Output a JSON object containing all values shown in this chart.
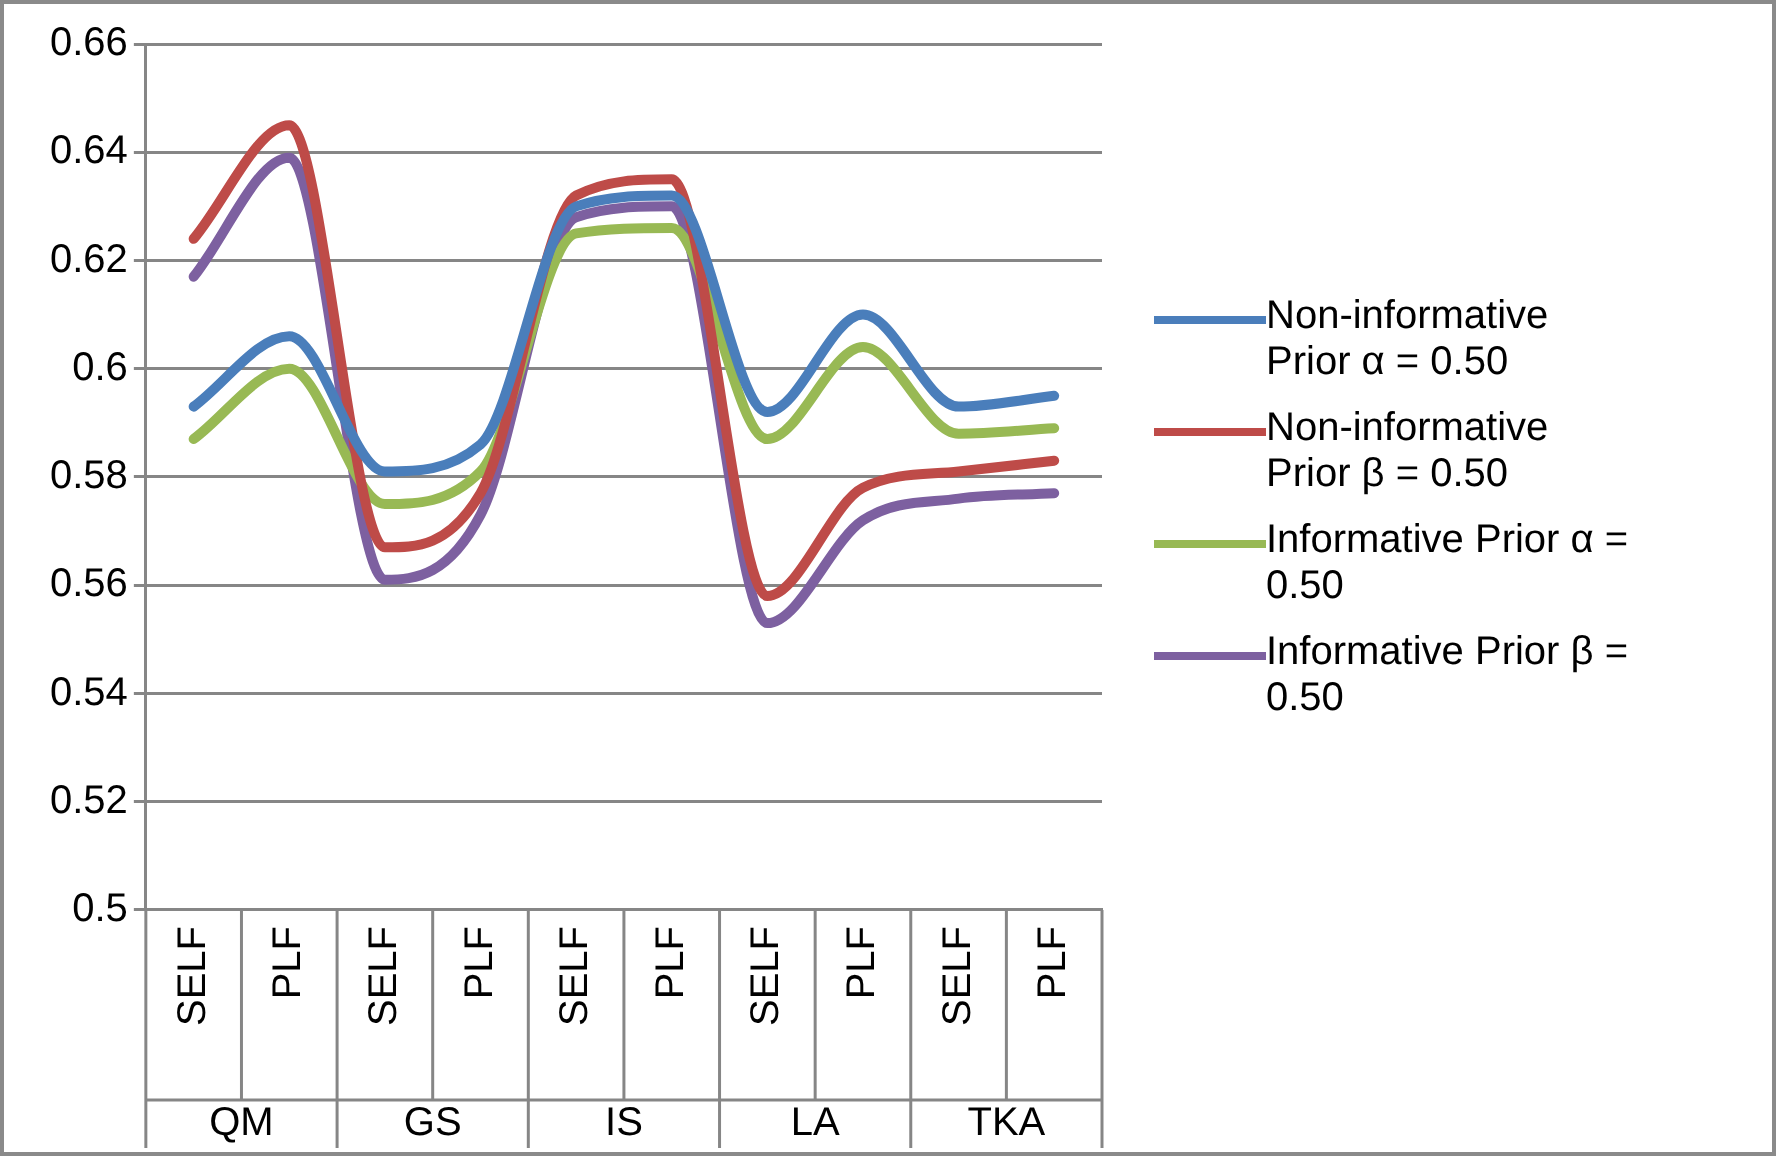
{
  "chart_data": {
    "type": "line",
    "categories": [
      "SELF",
      "PLF",
      "SELF",
      "PLF",
      "SELF",
      "PLF",
      "SELF",
      "PLF",
      "SELF",
      "PLF"
    ],
    "annotations": [
      "QM",
      "GS",
      "IS",
      "LA",
      "TKA"
    ],
    "ylim": [
      0.5,
      0.66
    ],
    "yticks": [
      0.5,
      0.52,
      0.54,
      0.56,
      0.58,
      0.6,
      0.62,
      0.64,
      0.66
    ],
    "grid": "y",
    "legend": "right",
    "marker": "none",
    "series": [
      {
        "name": "Non-informative Prior α = 0.50",
        "color": "#4a7ebb",
        "values": [
          0.593,
          0.606,
          0.581,
          0.586,
          0.63,
          0.632,
          0.592,
          0.61,
          0.593,
          0.595
        ]
      },
      {
        "name": "Non-informative Prior β = 0.50",
        "color": "#be4b48",
        "values": [
          0.624,
          0.645,
          0.567,
          0.577,
          0.632,
          0.635,
          0.558,
          0.578,
          0.581,
          0.583
        ]
      },
      {
        "name": "Informative Prior α = 0.50",
        "color": "#98b954",
        "values": [
          0.587,
          0.6,
          0.575,
          0.581,
          0.625,
          0.626,
          0.587,
          0.604,
          0.588,
          0.589
        ]
      },
      {
        "name": "Informative Prior β = 0.50",
        "color": "#7d60a0",
        "values": [
          0.617,
          0.639,
          0.561,
          0.573,
          0.628,
          0.63,
          0.553,
          0.572,
          0.576,
          0.577
        ]
      }
    ]
  }
}
